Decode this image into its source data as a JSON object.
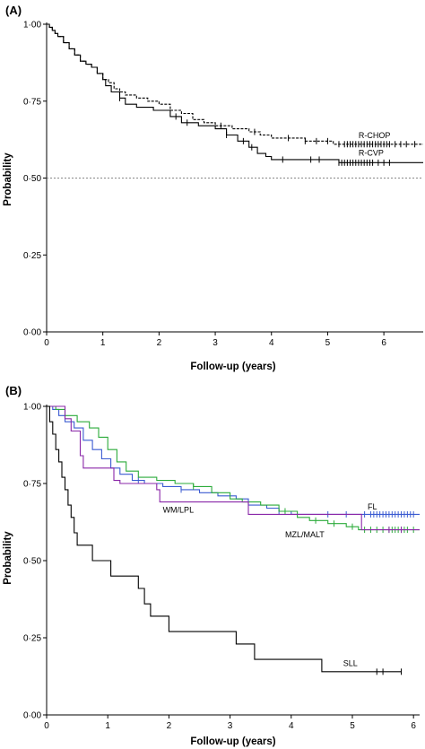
{
  "chart_data": [
    {
      "panel": "(A)",
      "type": "line",
      "subtype": "kaplan-meier",
      "xlabel": "Follow-up (years)",
      "ylabel": "Probability",
      "xlim": [
        0,
        6.7
      ],
      "ylim": [
        0,
        1
      ],
      "xticks": [
        "0",
        "1",
        "2",
        "3",
        "4",
        "5",
        "6"
      ],
      "yticks": [
        "0·00",
        "0·25",
        "0·50",
        "0·75",
        "1·00"
      ],
      "reference_line": {
        "y": 0.5,
        "style": "dotted",
        "color": "#888888"
      },
      "series": [
        {
          "name": "R-CHOP",
          "style": "dashed",
          "color": "#000000",
          "steps": [
            [
              0,
              1.0
            ],
            [
              0.05,
              0.99
            ],
            [
              0.1,
              0.98
            ],
            [
              0.15,
              0.97
            ],
            [
              0.2,
              0.96
            ],
            [
              0.3,
              0.94
            ],
            [
              0.4,
              0.92
            ],
            [
              0.5,
              0.9
            ],
            [
              0.6,
              0.88
            ],
            [
              0.7,
              0.87
            ],
            [
              0.8,
              0.86
            ],
            [
              0.9,
              0.84
            ],
            [
              1.0,
              0.82
            ],
            [
              1.1,
              0.81
            ],
            [
              1.2,
              0.79
            ],
            [
              1.3,
              0.78
            ],
            [
              1.4,
              0.77
            ],
            [
              1.6,
              0.76
            ],
            [
              1.8,
              0.75
            ],
            [
              2.0,
              0.74
            ],
            [
              2.2,
              0.72
            ],
            [
              2.4,
              0.71
            ],
            [
              2.6,
              0.69
            ],
            [
              2.8,
              0.68
            ],
            [
              3.0,
              0.67
            ],
            [
              3.3,
              0.66
            ],
            [
              3.6,
              0.65
            ],
            [
              3.8,
              0.64
            ],
            [
              4.0,
              0.63
            ],
            [
              4.6,
              0.62
            ],
            [
              5.1,
              0.61
            ],
            [
              6.7,
              0.61
            ]
          ],
          "censors": [
            3.1,
            3.7,
            4.3,
            4.6,
            4.8,
            5.0,
            5.2,
            5.3,
            5.35,
            5.4,
            5.45,
            5.5,
            5.55,
            5.6,
            5.65,
            5.7,
            5.75,
            5.8,
            5.85,
            5.9,
            5.95,
            6.0,
            6.05,
            6.1,
            6.2,
            6.3,
            6.4,
            6.55
          ],
          "label_pos": [
            5.55,
            0.63
          ]
        },
        {
          "name": "R-CVP",
          "style": "solid",
          "color": "#000000",
          "steps": [
            [
              0,
              1.0
            ],
            [
              0.05,
              0.99
            ],
            [
              0.1,
              0.98
            ],
            [
              0.15,
              0.97
            ],
            [
              0.2,
              0.96
            ],
            [
              0.3,
              0.94
            ],
            [
              0.4,
              0.92
            ],
            [
              0.5,
              0.9
            ],
            [
              0.6,
              0.88
            ],
            [
              0.7,
              0.87
            ],
            [
              0.8,
              0.86
            ],
            [
              0.9,
              0.84
            ],
            [
              1.0,
              0.82
            ],
            [
              1.05,
              0.8
            ],
            [
              1.15,
              0.78
            ],
            [
              1.3,
              0.76
            ],
            [
              1.4,
              0.74
            ],
            [
              1.6,
              0.73
            ],
            [
              1.9,
              0.72
            ],
            [
              2.2,
              0.7
            ],
            [
              2.4,
              0.68
            ],
            [
              2.7,
              0.67
            ],
            [
              3.0,
              0.66
            ],
            [
              3.2,
              0.64
            ],
            [
              3.4,
              0.62
            ],
            [
              3.6,
              0.6
            ],
            [
              3.75,
              0.58
            ],
            [
              3.9,
              0.57
            ],
            [
              4.0,
              0.56
            ],
            [
              5.2,
              0.55
            ],
            [
              6.7,
              0.55
            ]
          ],
          "censors": [
            1.3,
            2.3,
            2.5,
            3.2,
            3.5,
            3.65,
            4.2,
            4.7,
            4.85,
            5.2,
            5.25,
            5.3,
            5.35,
            5.4,
            5.45,
            5.5,
            5.55,
            5.6,
            5.65,
            5.7,
            5.75,
            5.8,
            5.9,
            6.0,
            6.1
          ],
          "label_pos": [
            5.55,
            0.573
          ]
        }
      ]
    },
    {
      "panel": "(B)",
      "type": "line",
      "subtype": "kaplan-meier",
      "xlabel": "Follow-up (years)",
      "ylabel": "Probability",
      "xlim": [
        0,
        6.1
      ],
      "ylim": [
        0,
        1
      ],
      "xticks": [
        "0",
        "1",
        "2",
        "3",
        "4",
        "5",
        "6"
      ],
      "yticks": [
        "0·00",
        "0·25",
        "0·50",
        "0·75",
        "1·00"
      ],
      "series": [
        {
          "name": "FL",
          "color": "#3b5bd1",
          "steps": [
            [
              0,
              1.0
            ],
            [
              0.1,
              0.99
            ],
            [
              0.2,
              0.97
            ],
            [
              0.3,
              0.95
            ],
            [
              0.45,
              0.93
            ],
            [
              0.6,
              0.89
            ],
            [
              0.75,
              0.86
            ],
            [
              0.9,
              0.83
            ],
            [
              1.05,
              0.8
            ],
            [
              1.2,
              0.78
            ],
            [
              1.4,
              0.76
            ],
            [
              1.6,
              0.75
            ],
            [
              1.9,
              0.74
            ],
            [
              2.2,
              0.73
            ],
            [
              2.5,
              0.72
            ],
            [
              2.8,
              0.71
            ],
            [
              3.1,
              0.7
            ],
            [
              3.3,
              0.68
            ],
            [
              3.6,
              0.67
            ],
            [
              3.8,
              0.66
            ],
            [
              4.0,
              0.65
            ],
            [
              6.1,
              0.65
            ]
          ],
          "censors": [
            1.5,
            2.2,
            3.8,
            4.6,
            4.9,
            5.2,
            5.3,
            5.35,
            5.4,
            5.45,
            5.5,
            5.55,
            5.6,
            5.65,
            5.7,
            5.75,
            5.8,
            5.85,
            5.9,
            5.95,
            6.0
          ],
          "label_pos": [
            5.25,
            0.665
          ]
        },
        {
          "name": "MZL/MALT",
          "color": "#2bab3a",
          "steps": [
            [
              0,
              1.0
            ],
            [
              0.15,
              0.99
            ],
            [
              0.3,
              0.97
            ],
            [
              0.5,
              0.95
            ],
            [
              0.7,
              0.93
            ],
            [
              0.85,
              0.9
            ],
            [
              1.0,
              0.86
            ],
            [
              1.15,
              0.82
            ],
            [
              1.3,
              0.79
            ],
            [
              1.5,
              0.77
            ],
            [
              1.8,
              0.76
            ],
            [
              2.1,
              0.75
            ],
            [
              2.4,
              0.74
            ],
            [
              2.7,
              0.72
            ],
            [
              3.0,
              0.7
            ],
            [
              3.2,
              0.69
            ],
            [
              3.5,
              0.68
            ],
            [
              3.8,
              0.66
            ],
            [
              4.1,
              0.64
            ],
            [
              4.3,
              0.63
            ],
            [
              4.6,
              0.62
            ],
            [
              4.9,
              0.61
            ],
            [
              5.1,
              0.6
            ],
            [
              6.1,
              0.6
            ]
          ],
          "censors": [
            2.4,
            3.9,
            4.4,
            4.7,
            5.0,
            5.2,
            5.3,
            5.4,
            5.5,
            5.6,
            5.65,
            5.7,
            5.75,
            5.8,
            5.85,
            5.9,
            6.0
          ],
          "label_pos": [
            3.9,
            0.575
          ]
        },
        {
          "name": "WM/LPL",
          "color": "#8a27a8",
          "steps": [
            [
              0,
              1.0
            ],
            [
              0.3,
              0.96
            ],
            [
              0.4,
              0.92
            ],
            [
              0.55,
              0.84
            ],
            [
              0.6,
              0.8
            ],
            [
              1.1,
              0.76
            ],
            [
              1.2,
              0.75
            ],
            [
              1.8,
              0.73
            ],
            [
              1.85,
              0.69
            ],
            [
              3.3,
              0.65
            ],
            [
              5.15,
              0.6
            ],
            [
              6.1,
              0.6
            ]
          ],
          "censors": [
            5.6,
            5.8
          ],
          "label_pos": [
            1.9,
            0.655
          ]
        },
        {
          "name": "SLL",
          "color": "#000000",
          "steps": [
            [
              0,
              1.0
            ],
            [
              0.05,
              0.95
            ],
            [
              0.1,
              0.91
            ],
            [
              0.15,
              0.86
            ],
            [
              0.2,
              0.82
            ],
            [
              0.25,
              0.77
            ],
            [
              0.3,
              0.73
            ],
            [
              0.35,
              0.68
            ],
            [
              0.4,
              0.64
            ],
            [
              0.45,
              0.59
            ],
            [
              0.5,
              0.55
            ],
            [
              0.75,
              0.5
            ],
            [
              1.0,
              0.5
            ],
            [
              1.05,
              0.45
            ],
            [
              1.4,
              0.45
            ],
            [
              1.5,
              0.41
            ],
            [
              1.6,
              0.36
            ],
            [
              1.7,
              0.32
            ],
            [
              2.0,
              0.27
            ],
            [
              3.1,
              0.23
            ],
            [
              3.2,
              0.23
            ],
            [
              3.4,
              0.18
            ],
            [
              4.5,
              0.14
            ],
            [
              5.8,
              0.14
            ]
          ],
          "censors": [
            5.4,
            5.5,
            5.8
          ],
          "label_pos": [
            4.85,
            0.158
          ]
        }
      ]
    }
  ]
}
